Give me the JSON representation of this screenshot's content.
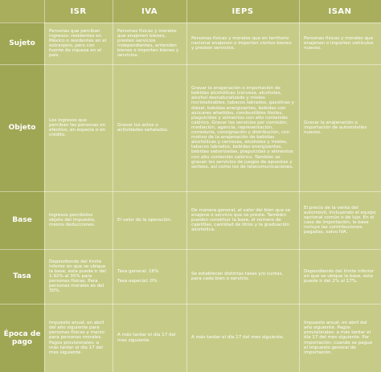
{
  "header": {
    "columns": [
      "ISR",
      "IVA",
      "IEPS",
      "ISAN"
    ]
  },
  "table": {
    "rows": [
      {
        "label": "Sujeto",
        "cells": [
          "Personas que perciban ingresos: residentes en México o residentes en el extranjero, pero con fuente de riqueza en el país.",
          "Personas físicas y morales que enajenen bienes, presten servicios independientes, arrienden bienes o importen bienes y servicios.",
          "Personas físicas y morales que en territorio nacional enajenen o importen ciertos bienes y presten servicios.",
          "Personas físicas y morales que enajenen o importen vehículos nuevos."
        ]
      },
      {
        "label": "Objeto",
        "cells": [
          "Los ingresos que perciban las personas en efectivo, en especie o en crédito.",
          "Gravar los actos o actividades señalados.",
          "Gravar la enajenación o importación de bebidas alcohólicas (cerveza, alcoholes, alcohol desnaturalizado y mieles incristalizables, tabacos labrados, gasolinas y diésel, bebidas energizantes, bebidas con azúcares añadidos, combustibles fósiles, plaguicidas y alimentos con alto contenido calórico. Gravar los servicios por comisión, mediación, agencia, representación, correduría, consignación y distribución, con motivo de la enajenación de bebidas alcohólicas y cervezas, alcoholes y mieles, tabacos labrados, bebidas energizantes, bebidas saborizadas, plaguicidas y alimentos con alto contenido calórico. También se gravan los servicios de juegos de apuestas y sorteos, así como los de telecomunicaciones.",
          "Gravar la enajenación o importación de automóviles nuevos."
        ]
      },
      {
        "label": "Base",
        "cells": [
          "Ingresos percibidos objeto del impuesto, menos deducciones.",
          "El valor de la operación.",
          "De manera general, el valor del bien que se enajene o servicio que se preste. También pueden constituir la base, el número de cajetillas, cantidad de litros y la graduación alcohólica.",
          "El precio de la venta del automóvil, incluyendo el equipo opcional común o de lujo. En el caso de importación, la base incluye las contribuciones pagadas, salvo IVA."
        ]
      },
      {
        "label": "Tasa",
        "cells": [
          "Dependiendo del límite inferior en que se ubique la base, esta puede ir del 1.92% al 35% para personas físicas. Para personas morales es del 30%.",
          "Tasa general: 16%\n\nTasa especial: 0%",
          "Se establecen distintas tasas y/o cuotas, para cada bien o servicio.",
          "Dependiendo del límite inferior en que se ubique la base, esta puede ir del 2% al 17%."
        ]
      },
      {
        "label": "Época de pago",
        "cells": [
          "Impuesto anual: en abril del año siguiente para personas físicas y marzo para personas morales. Pagos provisionales: a más tardar el día 17 del mes siguiente.",
          "A más tardar el día 17 del mes siguiente.",
          "A más tardar el día 17 del mes siguiente.",
          "Impuesto anual: en abril del año siguiente. Pagos provisionales: a más tardar el día 17 del mes siguiente. Por importación: cuando se pague el impuesto general de importación."
        ]
      }
    ]
  }
}
